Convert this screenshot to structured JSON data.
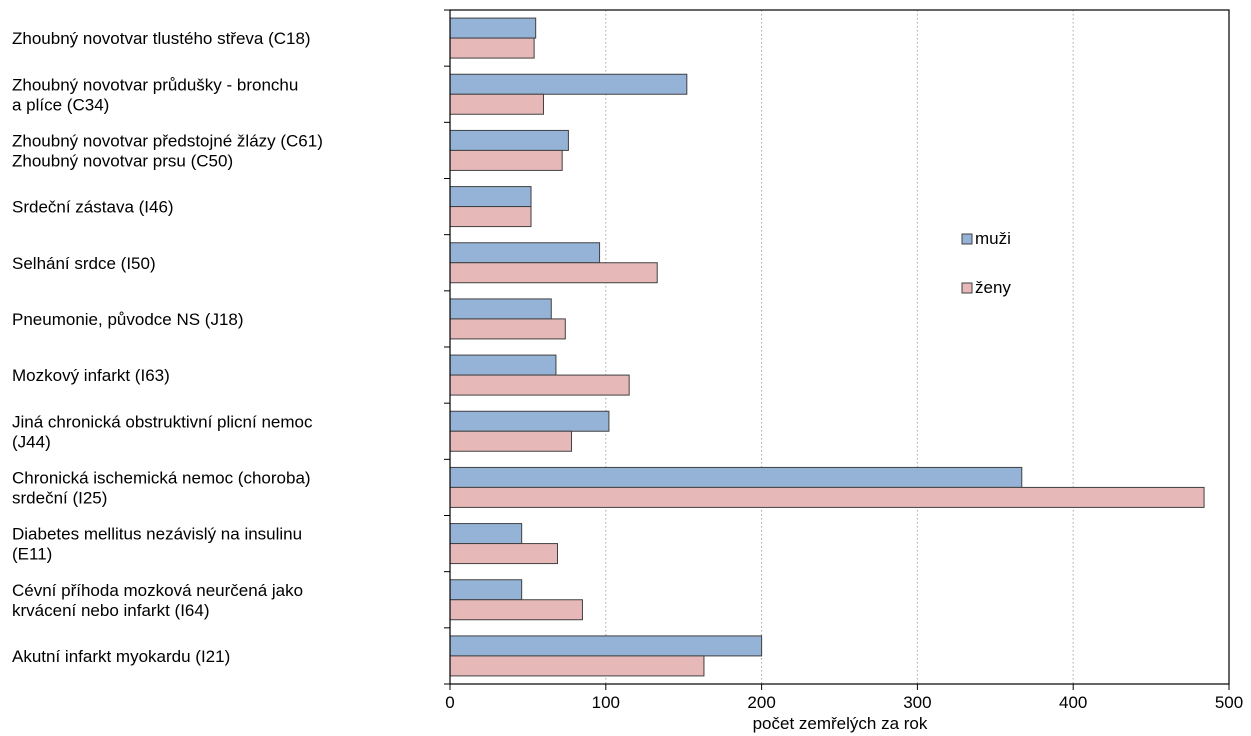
{
  "chart_data": {
    "type": "bar",
    "orientation": "horizontal",
    "xlabel": "počet zemřelých za rok",
    "xlim": [
      0,
      500
    ],
    "xticks": [
      0,
      100,
      200,
      300,
      400,
      500
    ],
    "grid": "vertical dotted",
    "legend_position": "right",
    "categories": [
      [
        "Zhoubný novotvar tlustého střeva (C18)"
      ],
      [
        "Zhoubný novotvar průdušky - bronchu",
        "a plíce (C34)"
      ],
      [
        "Zhoubný novotvar předstojné žlázy (C61)",
        "Zhoubný novotvar prsu (C50)"
      ],
      [
        "Srdeční zástava (I46)"
      ],
      [
        "Selhání srdce (I50)"
      ],
      [
        "Pneumonie, původce NS (J18)"
      ],
      [
        "Mozkový infarkt (I63)"
      ],
      [
        "Jiná chronická obstruktivní plicní nemoc",
        "(J44)"
      ],
      [
        "Chronická ischemická nemoc (choroba)",
        "srdeční (I25)"
      ],
      [
        "Diabetes mellitus nezávislý na insulinu",
        "(E11)"
      ],
      [
        "Cévní příhoda mozková neurčená jako",
        "krvácení nebo infarkt (I64)"
      ],
      [
        "Akutní infarkt myokardu (I21)"
      ]
    ],
    "series": [
      {
        "name": "muži",
        "color": "#95b3d7",
        "values": [
          55,
          152,
          76,
          52,
          96,
          65,
          68,
          102,
          367,
          46,
          46,
          200
        ]
      },
      {
        "name": "ženy",
        "color": "#e6b9b8",
        "values": [
          54,
          60,
          72,
          52,
          133,
          74,
          115,
          78,
          484,
          69,
          85,
          163
        ]
      }
    ]
  }
}
